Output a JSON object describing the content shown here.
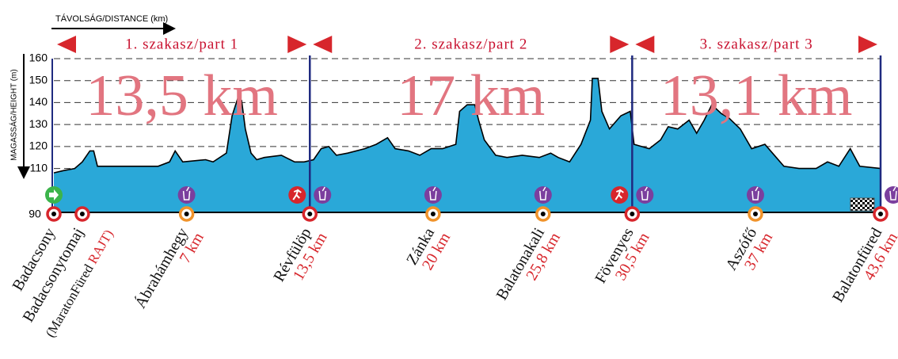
{
  "chart_data": {
    "type": "area",
    "x_label": "TÁVOLSÁG/DISTANCE (km)",
    "y_label": "MAGASSÁG/HEIGHT (m)",
    "color": "#2aa8d8",
    "xlim": [
      0,
      43.6
    ],
    "ylim": [
      90,
      160
    ],
    "yticks": [
      90,
      110,
      120,
      130,
      140,
      150,
      160
    ],
    "grid": true,
    "x": [
      0.0,
      0.5,
      1.1,
      1.5,
      1.9,
      2.1,
      2.3,
      3.4,
      5.5,
      6.1,
      6.4,
      6.8,
      8.0,
      8.4,
      9.1,
      9.4,
      9.7,
      9.9,
      10.1,
      10.4,
      10.7,
      11.1,
      12.0,
      12.7,
      13.2,
      13.7,
      14.1,
      14.5,
      14.9,
      15.5,
      16.4,
      17.0,
      17.6,
      18.0,
      18.7,
      19.3,
      19.9,
      20.5,
      21.2,
      21.4,
      21.8,
      22.2,
      22.4,
      22.7,
      23.3,
      23.9,
      24.7,
      25.6,
      26.2,
      26.6,
      27.2,
      27.8,
      28.3,
      28.4,
      28.7,
      28.9,
      29.3,
      29.9,
      30.4,
      30.6,
      31.4,
      32.0,
      32.4,
      32.9,
      33.5,
      33.9,
      34.3,
      34.7,
      35.2,
      35.6,
      36.2,
      36.8,
      37.5,
      37.9,
      38.5,
      39.3,
      40.2,
      40.8,
      41.4,
      42.0,
      42.5,
      43.6
    ],
    "values": [
      108,
      109,
      110,
      113,
      118,
      118,
      111,
      111,
      111,
      113,
      118,
      113,
      114,
      113,
      117,
      134,
      142,
      141,
      128,
      117,
      114,
      115,
      116,
      113,
      113,
      114,
      119,
      120,
      116,
      117,
      119,
      121,
      124,
      119,
      118,
      116,
      119,
      119,
      121,
      136,
      139,
      139,
      132,
      123,
      116,
      115,
      116,
      115,
      117,
      115,
      113,
      121,
      132,
      151,
      151,
      136,
      128,
      134,
      136,
      121,
      119,
      123,
      129,
      128,
      132,
      126,
      132,
      139,
      135,
      133,
      128,
      119,
      121,
      117,
      111,
      110,
      110,
      113,
      111,
      119,
      111,
      110
    ],
    "segments": [
      {
        "name": "1. szakasz/part 1",
        "length": 13.5,
        "length_label": "13,5 km"
      },
      {
        "name": "2. szakasz/part 2",
        "length": 17,
        "length_label": "17 km"
      },
      {
        "name": "3. szakasz/part 3",
        "length": 13.1,
        "length_label": "13,1 km"
      }
    ],
    "stations": [
      {
        "name": "Badacsony",
        "km": 0,
        "color": "#d7262c"
      },
      {
        "name": "Badacsonytomaj",
        "km": 1.5,
        "color": "#d7262c",
        "note": "(MaratonFüred",
        "start_label": "RAJT)"
      },
      {
        "name": "Ábrahámhegy",
        "km": 7,
        "label": "7 km",
        "color": "#f0932b"
      },
      {
        "name": "Révfülöp",
        "km": 13.5,
        "label": "13,5 km",
        "color": "#d7262c"
      },
      {
        "name": "Zánka",
        "km": 20,
        "label": "20 km",
        "color": "#f0932b"
      },
      {
        "name": "Balatonakali",
        "km": 25.8,
        "label": "25,8 km",
        "color": "#f0932b"
      },
      {
        "name": "Fövenyes",
        "km": 30.5,
        "label": "30,5 km",
        "color": "#d7262c"
      },
      {
        "name": "Aszófő",
        "km": 37,
        "label": "37 km",
        "color": "#f0932b"
      },
      {
        "name": "Balatonfüred",
        "km": 43.6,
        "label": "43,6 km",
        "color": "#d7262c"
      }
    ]
  }
}
